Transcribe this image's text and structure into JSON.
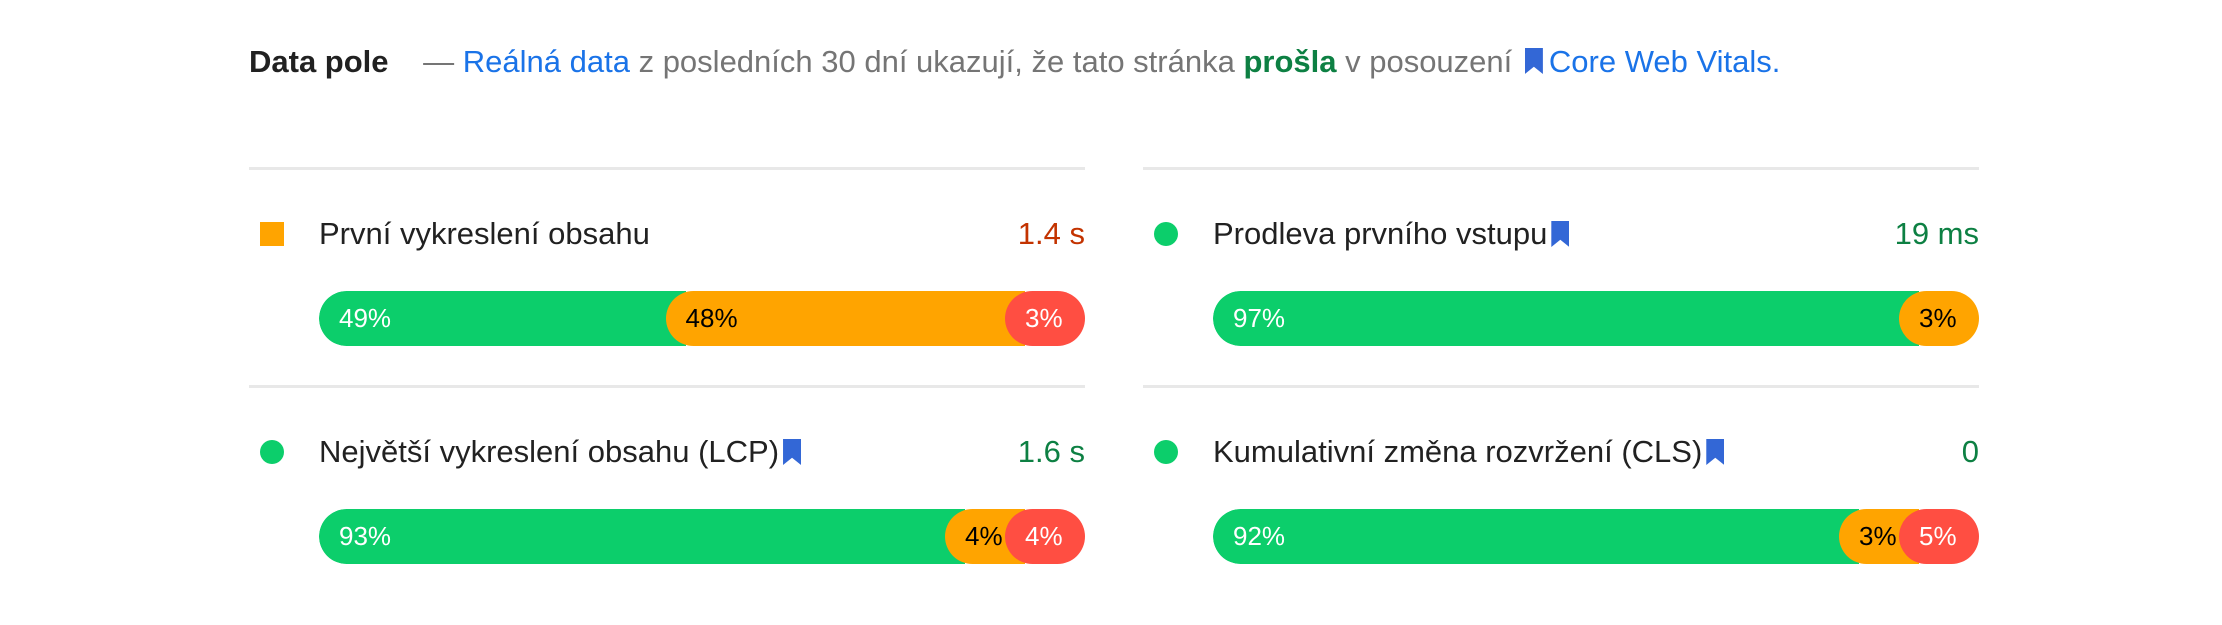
{
  "header": {
    "title": "Data pole",
    "dash": "—",
    "link_text": "Reálná data",
    "text1": " z posledních 30 dní ukazují, že tato stránka ",
    "status": "prošla",
    "text2": " v posouzení ",
    "cwv_link": "Core Web Vitals",
    "period": "."
  },
  "colors": {
    "fast": "#0cce6b",
    "average": "#ffa400",
    "slow": "#ff4e42",
    "value_average": "#c33300",
    "value_fast": "#0d8043",
    "link": "#1a73e8"
  },
  "metrics": [
    {
      "label": "První vykreslení obsahu",
      "value": "1.4 s",
      "indicator": "square-orange",
      "value_color": "#c33300",
      "bookmark": false,
      "distribution": [
        {
          "pct": 49,
          "label": "49%",
          "kind": "fast"
        },
        {
          "pct": 48,
          "label": "48%",
          "kind": "avg"
        },
        {
          "pct": 3,
          "label": "3%",
          "kind": "slow"
        }
      ]
    },
    {
      "label": "Prodleva prvního vstupu",
      "value": "19 ms",
      "indicator": "circle-green",
      "value_color": "#0d8043",
      "bookmark": true,
      "distribution": [
        {
          "pct": 97,
          "label": "97%",
          "kind": "fast"
        },
        {
          "pct": 3,
          "label": "3%",
          "kind": "avg"
        }
      ]
    },
    {
      "label": "Největší vykreslení obsahu (LCP)",
      "value": "1.6 s",
      "indicator": "circle-green",
      "value_color": "#0d8043",
      "bookmark": true,
      "distribution": [
        {
          "pct": 93,
          "label": "93%",
          "kind": "fast"
        },
        {
          "pct": 4,
          "label": "4%",
          "kind": "avg"
        },
        {
          "pct": 4,
          "label": "4%",
          "kind": "slow"
        }
      ]
    },
    {
      "label": "Kumulativní změna rozvržení (CLS)",
      "value": "0",
      "indicator": "circle-green",
      "value_color": "#0d8043",
      "bookmark": true,
      "distribution": [
        {
          "pct": 92,
          "label": "92%",
          "kind": "fast"
        },
        {
          "pct": 3,
          "label": "3%",
          "kind": "avg"
        },
        {
          "pct": 5,
          "label": "5%",
          "kind": "slow"
        }
      ]
    }
  ]
}
